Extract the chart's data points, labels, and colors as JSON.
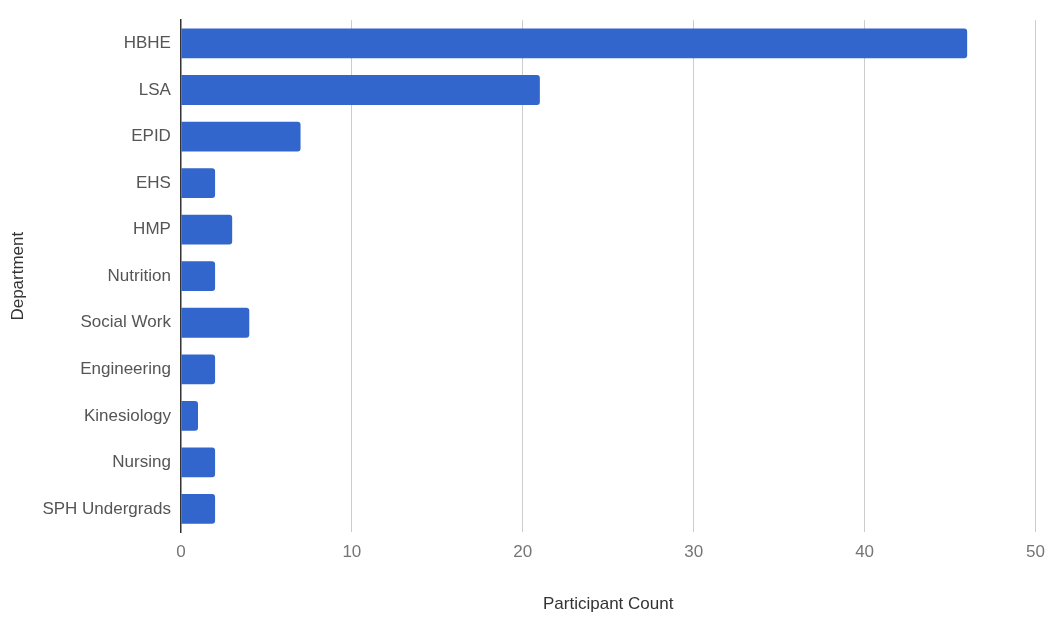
{
  "chart_data": {
    "type": "bar",
    "orientation": "horizontal",
    "xlabel": "Participant Count",
    "ylabel": "Department",
    "categories": [
      "HBHE",
      "LSA",
      "EPID",
      "EHS",
      "HMP",
      "Nutrition",
      "Social Work",
      "Engineering",
      "Kinesiology",
      "Nursing",
      "SPH Undergrads"
    ],
    "values": [
      46,
      21,
      7,
      2,
      3,
      2,
      4,
      2,
      1,
      2,
      2
    ],
    "color": "#3366cc",
    "xlim": [
      0,
      50
    ],
    "xticks": [
      0,
      10,
      20,
      30,
      40,
      50
    ],
    "grid": "x",
    "legend": false
  }
}
